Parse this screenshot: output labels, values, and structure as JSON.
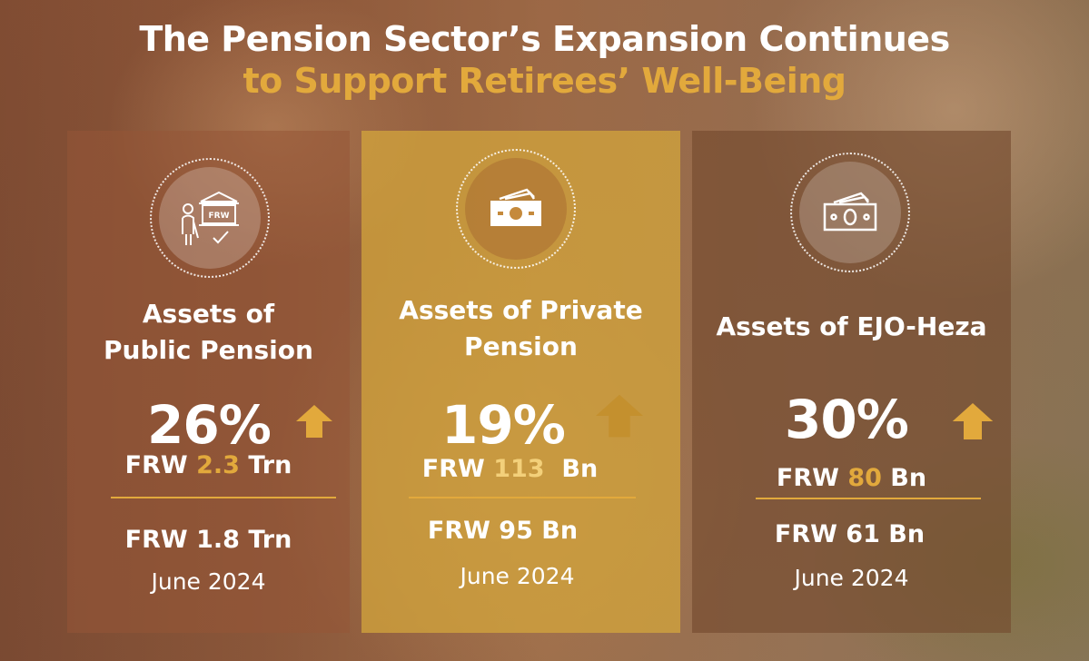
{
  "title": {
    "line1": "The Pension Sector’s Expansion Continues",
    "line2": "to Support Retirees’ Well-Being"
  },
  "colors": {
    "accent": "#e2a93c",
    "text": "#ffffff"
  },
  "cards": [
    {
      "icon": "pension-institution-icon",
      "icon_text": "FRW",
      "label_line1": "Assets of",
      "label_line2": "Public Pension",
      "growth": "26%",
      "current_prefix": "FRW ",
      "current_value": "2.3",
      "current_unit": " Trn",
      "previous": "FRW 1.8 Trn",
      "previous_date": "June 2024"
    },
    {
      "icon": "banknote-icon",
      "label_line1": "Assets of Private",
      "label_line2": "Pension",
      "growth": "19%",
      "current_prefix": "FRW ",
      "current_value": "113",
      "current_unit": "  Bn",
      "previous": "FRW 95 Bn",
      "previous_date": "June 2024"
    },
    {
      "icon": "banknote-icon",
      "label_line1": "Assets of EJO-Heza",
      "growth": "30%",
      "current_prefix": "FRW ",
      "current_value": "80",
      "current_unit": " Bn",
      "previous": "FRW 61 Bn",
      "previous_date": "June 2024"
    }
  ]
}
